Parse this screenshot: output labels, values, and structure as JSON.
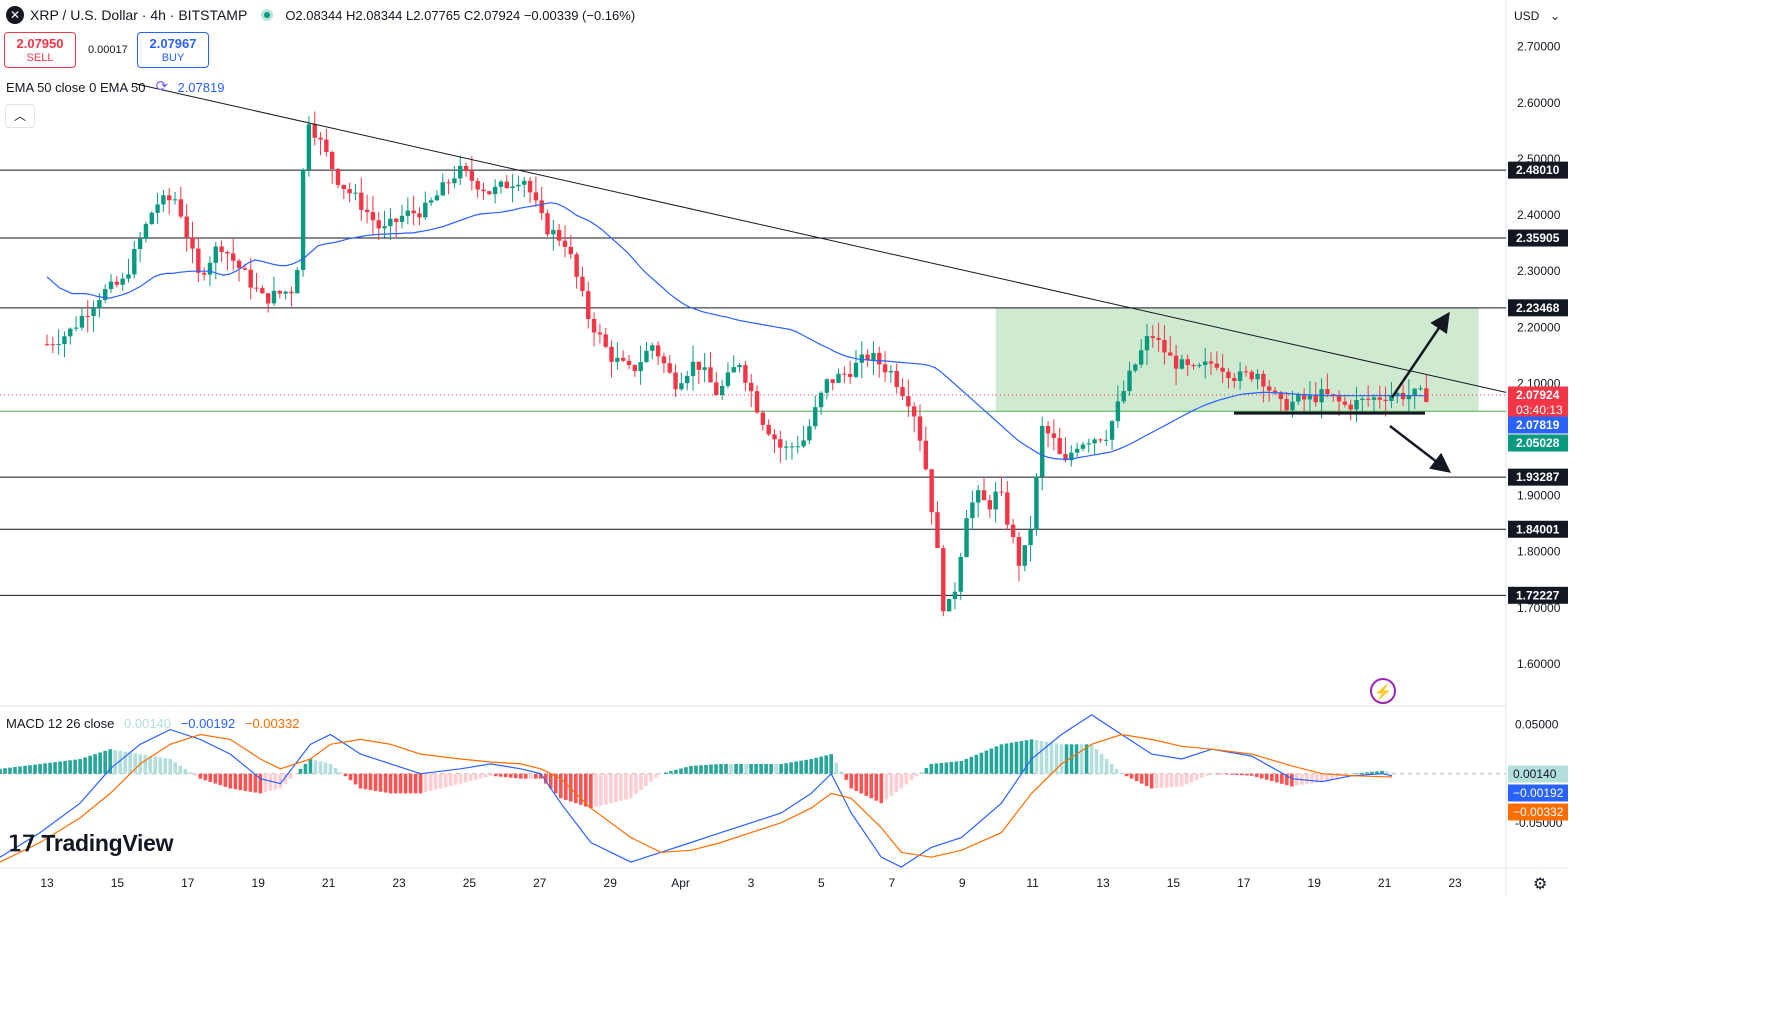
{
  "header": {
    "symbol_icon": "xrp-icon",
    "title": "XRP / U.S. Dollar · 4h · BITSTAMP",
    "ohlc": "O2.08344 H2.08344 L2.07765 C2.07924 −0.00339 (−0.16%)"
  },
  "trade": {
    "sell_price": "2.07950",
    "sell_label": "SELL",
    "spread": "0.00017",
    "buy_price": "2.07967",
    "buy_label": "BUY"
  },
  "indicators": {
    "ema_label": "EMA 50 close 0 EMA 50",
    "ema_value": "2.07819",
    "macd_label": "MACD 12 26 close",
    "macd_hist": "0.00140",
    "macd_line": "−0.00192",
    "macd_signal": "−0.00332"
  },
  "toolbar": {
    "currency": "USD",
    "collapse_icon": "chevron-up-icon",
    "settings_icon": "gear-icon",
    "flash_icon": "lightning-icon"
  },
  "branding": {
    "logo": "TradingView"
  },
  "colors": {
    "up": "#089981",
    "down": "#f23645",
    "ema": "#2962ff",
    "macd": "#2962ff",
    "signal": "#ff6d00",
    "zone": "#c8e6c9"
  },
  "chart_data": {
    "type": "candlestick",
    "price_axis": {
      "range": [
        1.525,
        2.7833
      ],
      "ticks": [
        "2.70000",
        "2.60000",
        "2.50000",
        "2.40000",
        "2.30000",
        "2.20000",
        "2.10000",
        "1.90000",
        "1.80000",
        "1.70000",
        "1.60000"
      ],
      "tick_values": [
        2.7,
        2.6,
        2.5,
        2.4,
        2.3,
        2.2,
        2.1,
        1.9,
        1.8,
        1.7,
        1.6
      ]
    },
    "x_axis": {
      "labels": [
        "13",
        "15",
        "17",
        "19",
        "21",
        "23",
        "25",
        "27",
        "29",
        "Apr",
        "3",
        "5",
        "7",
        "9",
        "11",
        "13",
        "15",
        "17",
        "19",
        "21",
        "23"
      ],
      "label_index": [
        0,
        12,
        24,
        36,
        48,
        60,
        72,
        84,
        96,
        108,
        120,
        132,
        144,
        156,
        168,
        180,
        192,
        204,
        216,
        228,
        240
      ]
    },
    "horizontal_levels": [
      {
        "value": 2.4801,
        "label": "2.48010"
      },
      {
        "value": 2.35905,
        "label": "2.35905"
      },
      {
        "value": 2.23468,
        "label": "2.23468"
      },
      {
        "value": 1.93287,
        "label": "1.93287"
      },
      {
        "value": 1.84001,
        "label": "1.84001"
      },
      {
        "value": 1.72227,
        "label": "1.72227"
      }
    ],
    "price_tags": [
      {
        "value": 2.07924,
        "label": "2.07924",
        "sub": "03:40:13",
        "color": "#f23645"
      },
      {
        "value": 2.07819,
        "label": "2.07819",
        "color": "#2962ff"
      },
      {
        "value": 2.05028,
        "label": "2.05028",
        "color": "#089981"
      }
    ],
    "support_line": 2.05028,
    "current_price": 2.07924,
    "trendline": {
      "from": {
        "index": 22,
        "price": 2.634
      },
      "to": {
        "index": 254,
        "price": 2.084
      }
    },
    "consolidation_zone": {
      "from_index": 163,
      "to_index": 246,
      "top": 2.23468,
      "bottom": 2.05028
    },
    "range_floor": {
      "from_index": 209,
      "to_index": 241,
      "price": 2.047
    },
    "arrows": [
      {
        "from": {
          "index": 236,
          "price": 2.08
        },
        "to": {
          "index": 246,
          "price": 2.215
        }
      },
      {
        "from": {
          "index": 236,
          "price": 2.017
        },
        "to": {
          "index": 246,
          "price": 1.942
        }
      }
    ],
    "ema_50": [
      2.29,
      2.28,
      2.27,
      2.265,
      2.26,
      2.26,
      2.26,
      2.258,
      2.255,
      2.253,
      2.252,
      2.255,
      2.258,
      2.262,
      2.268,
      2.274,
      2.282,
      2.29,
      2.294,
      2.296,
      2.296,
      2.298,
      2.299,
      2.3,
      2.3,
      2.3,
      2.3,
      2.296,
      2.293,
      2.295,
      2.3,
      2.307,
      2.315,
      2.32,
      2.318,
      2.315,
      2.312,
      2.31,
      2.31,
      2.313,
      2.318,
      2.325,
      2.335,
      2.345,
      2.348,
      2.35,
      2.352,
      2.355,
      2.358,
      2.36,
      2.362,
      2.364,
      2.365,
      2.366,
      2.366,
      2.367,
      2.367,
      2.368,
      2.368,
      2.37,
      2.372,
      2.374,
      2.377,
      2.38,
      2.384,
      2.388,
      2.392,
      2.396,
      2.4,
      2.402,
      2.403,
      2.404,
      2.405,
      2.407,
      2.409,
      2.412,
      2.414,
      2.416,
      2.418,
      2.42,
      2.422,
      2.42,
      2.415,
      2.408,
      2.4,
      2.395,
      2.39,
      2.383,
      2.375,
      2.365,
      2.355,
      2.345,
      2.335,
      2.323,
      2.31,
      2.298,
      2.288,
      2.278,
      2.268,
      2.258,
      2.25,
      2.242,
      2.236,
      2.232,
      2.228,
      2.225,
      2.223,
      2.22,
      2.218,
      2.215,
      2.212,
      2.21,
      2.208,
      2.206,
      2.204,
      2.202,
      2.2,
      2.198,
      2.196,
      2.192,
      2.186,
      2.18,
      2.174,
      2.168,
      2.163,
      2.157,
      2.152,
      2.148,
      2.145,
      2.143,
      2.142,
      2.141,
      2.14,
      2.14,
      2.139,
      2.138,
      2.137,
      2.136,
      2.135,
      2.134,
      2.132,
      2.128,
      2.12,
      2.11,
      2.1,
      2.09,
      2.08,
      2.07,
      2.06,
      2.05,
      2.04,
      2.03,
      2.02,
      2.01,
      2.0,
      1.992,
      1.985,
      1.978,
      1.972,
      1.968,
      1.966,
      1.965,
      1.965,
      1.966,
      1.968,
      1.97,
      1.972,
      1.974,
      1.976,
      1.978,
      1.982,
      1.987,
      1.992,
      1.998,
      2.004,
      2.01,
      2.016,
      2.022,
      2.028,
      2.034,
      2.04,
      2.046,
      2.052,
      2.057,
      2.062,
      2.066,
      2.07,
      2.073,
      2.076,
      2.079,
      2.081,
      2.082,
      2.083,
      2.084,
      2.084,
      2.083,
      2.083,
      2.082,
      2.081,
      2.08,
      2.08,
      2.079,
      2.079,
      2.078,
      2.078,
      2.078,
      2.078,
      2.078,
      2.078,
      2.078,
      2.078,
      2.078,
      2.078,
      2.078,
      2.078,
      2.078,
      2.078,
      2.078,
      2.078,
      2.078
    ],
    "macd": {
      "range": [
        -0.095,
        0.068
      ],
      "ticks": [
        "0.05000",
        "-0.05000"
      ],
      "tick_values": [
        0.05,
        -0.05
      ],
      "tags": [
        {
          "value": 0.0014,
          "label": "0.00140",
          "color": "#b2dfdb"
        },
        {
          "value": -0.00192,
          "label": "−0.00192",
          "color": "#2962ff"
        },
        {
          "value": -0.00332,
          "label": "−0.00332",
          "color": "#ff6d00"
        }
      ],
      "macd_points": [
        [
          0,
          -0.085
        ],
        [
          8,
          -0.06
        ],
        [
          16,
          -0.03
        ],
        [
          22,
          0.005
        ],
        [
          28,
          0.03
        ],
        [
          34,
          0.045
        ],
        [
          40,
          0.035
        ],
        [
          46,
          0.02
        ],
        [
          52,
          -0.005
        ],
        [
          56,
          -0.01
        ],
        [
          62,
          0.03
        ],
        [
          66,
          0.04
        ],
        [
          72,
          0.02
        ],
        [
          78,
          0.01
        ],
        [
          84,
          0.0
        ],
        [
          92,
          0.005
        ],
        [
          98,
          0.01
        ],
        [
          104,
          0.005
        ],
        [
          108,
          0.0
        ],
        [
          112,
          -0.03
        ],
        [
          118,
          -0.07
        ],
        [
          126,
          -0.09
        ],
        [
          132,
          -0.08
        ],
        [
          138,
          -0.07
        ],
        [
          144,
          -0.06
        ],
        [
          150,
          -0.05
        ],
        [
          156,
          -0.04
        ],
        [
          162,
          -0.02
        ],
        [
          166,
          0.0
        ],
        [
          170,
          -0.04
        ],
        [
          176,
          -0.085
        ],
        [
          180,
          -0.095
        ],
        [
          186,
          -0.075
        ],
        [
          192,
          -0.065
        ],
        [
          200,
          -0.03
        ],
        [
          206,
          0.015
        ],
        [
          212,
          0.04
        ],
        [
          218,
          0.06
        ],
        [
          224,
          0.04
        ],
        [
          230,
          0.02
        ],
        [
          236,
          0.015
        ],
        [
          242,
          0.025
        ],
        [
          250,
          0.018
        ],
        [
          258,
          -0.005
        ],
        [
          264,
          -0.008
        ],
        [
          270,
          -0.002
        ],
        [
          276,
          0.0
        ],
        [
          278,
          -0.002
        ]
      ],
      "signal_points": [
        [
          0,
          -0.09
        ],
        [
          8,
          -0.07
        ],
        [
          16,
          -0.045
        ],
        [
          22,
          -0.02
        ],
        [
          28,
          0.01
        ],
        [
          34,
          0.03
        ],
        [
          40,
          0.04
        ],
        [
          46,
          0.035
        ],
        [
          52,
          0.015
        ],
        [
          56,
          0.005
        ],
        [
          62,
          0.015
        ],
        [
          66,
          0.03
        ],
        [
          72,
          0.035
        ],
        [
          78,
          0.03
        ],
        [
          84,
          0.02
        ],
        [
          92,
          0.015
        ],
        [
          98,
          0.012
        ],
        [
          104,
          0.01
        ],
        [
          108,
          0.005
        ],
        [
          112,
          -0.005
        ],
        [
          118,
          -0.035
        ],
        [
          126,
          -0.065
        ],
        [
          132,
          -0.08
        ],
        [
          138,
          -0.078
        ],
        [
          144,
          -0.07
        ],
        [
          150,
          -0.06
        ],
        [
          156,
          -0.05
        ],
        [
          162,
          -0.035
        ],
        [
          166,
          -0.02
        ],
        [
          170,
          -0.025
        ],
        [
          176,
          -0.055
        ],
        [
          180,
          -0.08
        ],
        [
          186,
          -0.085
        ],
        [
          192,
          -0.078
        ],
        [
          200,
          -0.06
        ],
        [
          206,
          -0.02
        ],
        [
          212,
          0.01
        ],
        [
          218,
          0.03
        ],
        [
          224,
          0.04
        ],
        [
          230,
          0.035
        ],
        [
          236,
          0.028
        ],
        [
          242,
          0.025
        ],
        [
          250,
          0.02
        ],
        [
          258,
          0.008
        ],
        [
          264,
          0.0
        ],
        [
          270,
          -0.002
        ],
        [
          276,
          -0.003
        ],
        [
          278,
          -0.00332
        ]
      ]
    }
  }
}
